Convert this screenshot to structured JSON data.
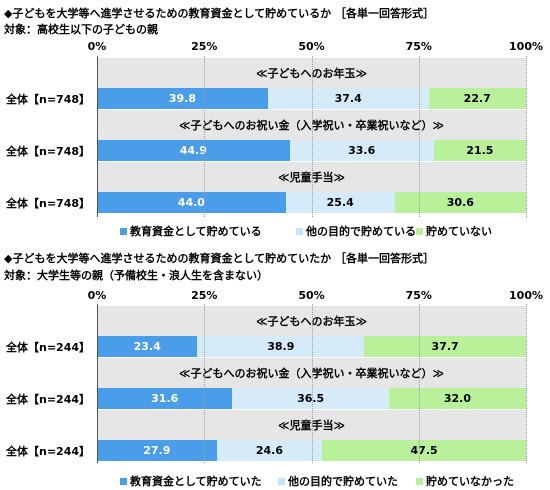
{
  "chart_data": [
    {
      "type": "bar",
      "orientation": "horizontal-stacked",
      "title": "◆子どもを大学等へ進学させるための教育資金として貯めているか ［各単一回答形式］",
      "subtitle": "対象：高校生以下の子どもの親",
      "ticks": [
        "0%",
        "25%",
        "50%",
        "75%",
        "100%"
      ],
      "xlim": [
        0,
        100
      ],
      "groups": [
        {
          "label": "≪子どもへのお年玉≫",
          "row_label": "全体【n=748】",
          "values": [
            39.8,
            37.4,
            22.7
          ]
        },
        {
          "label": "≪子どもへのお祝い金（入学祝い・卒業祝いなど）≫",
          "row_label": "全体【n=748】",
          "values": [
            44.9,
            33.6,
            21.5
          ]
        },
        {
          "label": "≪児童手当≫",
          "row_label": "全体【n=748】",
          "values": [
            44.0,
            25.4,
            30.6
          ]
        }
      ],
      "series": [
        {
          "name": "教育資金として貯めている",
          "color": "#4a9de8"
        },
        {
          "name": "他の目的で貯めている",
          "color": "#d6ebfa"
        },
        {
          "name": "貯めていない",
          "color": "#b9f09a"
        }
      ]
    },
    {
      "type": "bar",
      "orientation": "horizontal-stacked",
      "title": "◆子どもを大学等へ進学させるための教育資金として貯めていたか ［各単一回答形式］",
      "subtitle": "対象：大学生等の親（予備校生・浪人生を含まない）",
      "ticks": [
        "0%",
        "25%",
        "50%",
        "75%",
        "100%"
      ],
      "xlim": [
        0,
        100
      ],
      "groups": [
        {
          "label": "≪子どもへのお年玉≫",
          "row_label": "全体【n=244】",
          "values": [
            23.4,
            38.9,
            37.7
          ]
        },
        {
          "label": "≪子どもへのお祝い金（入学祝い・卒業祝いなど）≫",
          "row_label": "全体【n=244】",
          "values": [
            31.6,
            36.5,
            32.0
          ]
        },
        {
          "label": "≪児童手当≫",
          "row_label": "全体【n=244】",
          "values": [
            27.9,
            24.6,
            47.5
          ]
        }
      ],
      "series": [
        {
          "name": "教育資金として貯めていた",
          "color": "#4a9de8"
        },
        {
          "name": "他の目的で貯めていた",
          "color": "#d6ebfa"
        },
        {
          "name": "貯めていなかった",
          "color": "#b9f09a"
        }
      ]
    }
  ]
}
